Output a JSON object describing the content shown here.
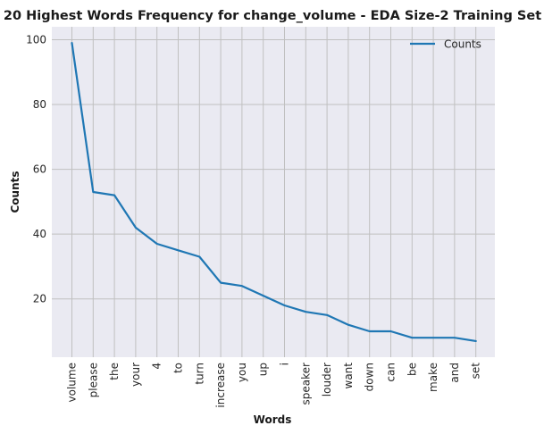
{
  "chart_data": {
    "type": "line",
    "title": "20 Highest Words Frequency for change_volume - EDA Size-2 Training Set",
    "xlabel": "Words",
    "ylabel": "Counts",
    "categories": [
      "volume",
      "please",
      "the",
      "your",
      "4",
      "to",
      "turn",
      "increase",
      "you",
      "up",
      "i",
      "speaker",
      "louder",
      "want",
      "down",
      "can",
      "be",
      "make",
      "and",
      "set"
    ],
    "series": [
      {
        "name": "Counts",
        "values": [
          99,
          53,
          52,
          42,
          37,
          35,
          33,
          25,
          24,
          21,
          18,
          16,
          15,
          12,
          10,
          10,
          8,
          8,
          8,
          7
        ]
      }
    ],
    "ylim": [
      2,
      104
    ],
    "yticks": [
      20,
      40,
      60,
      80,
      100
    ],
    "grid": true,
    "legend": "top-right",
    "colors": {
      "line": "#1f77b4",
      "background": "#eaeaf2",
      "grid": "#c0c0c0"
    }
  }
}
